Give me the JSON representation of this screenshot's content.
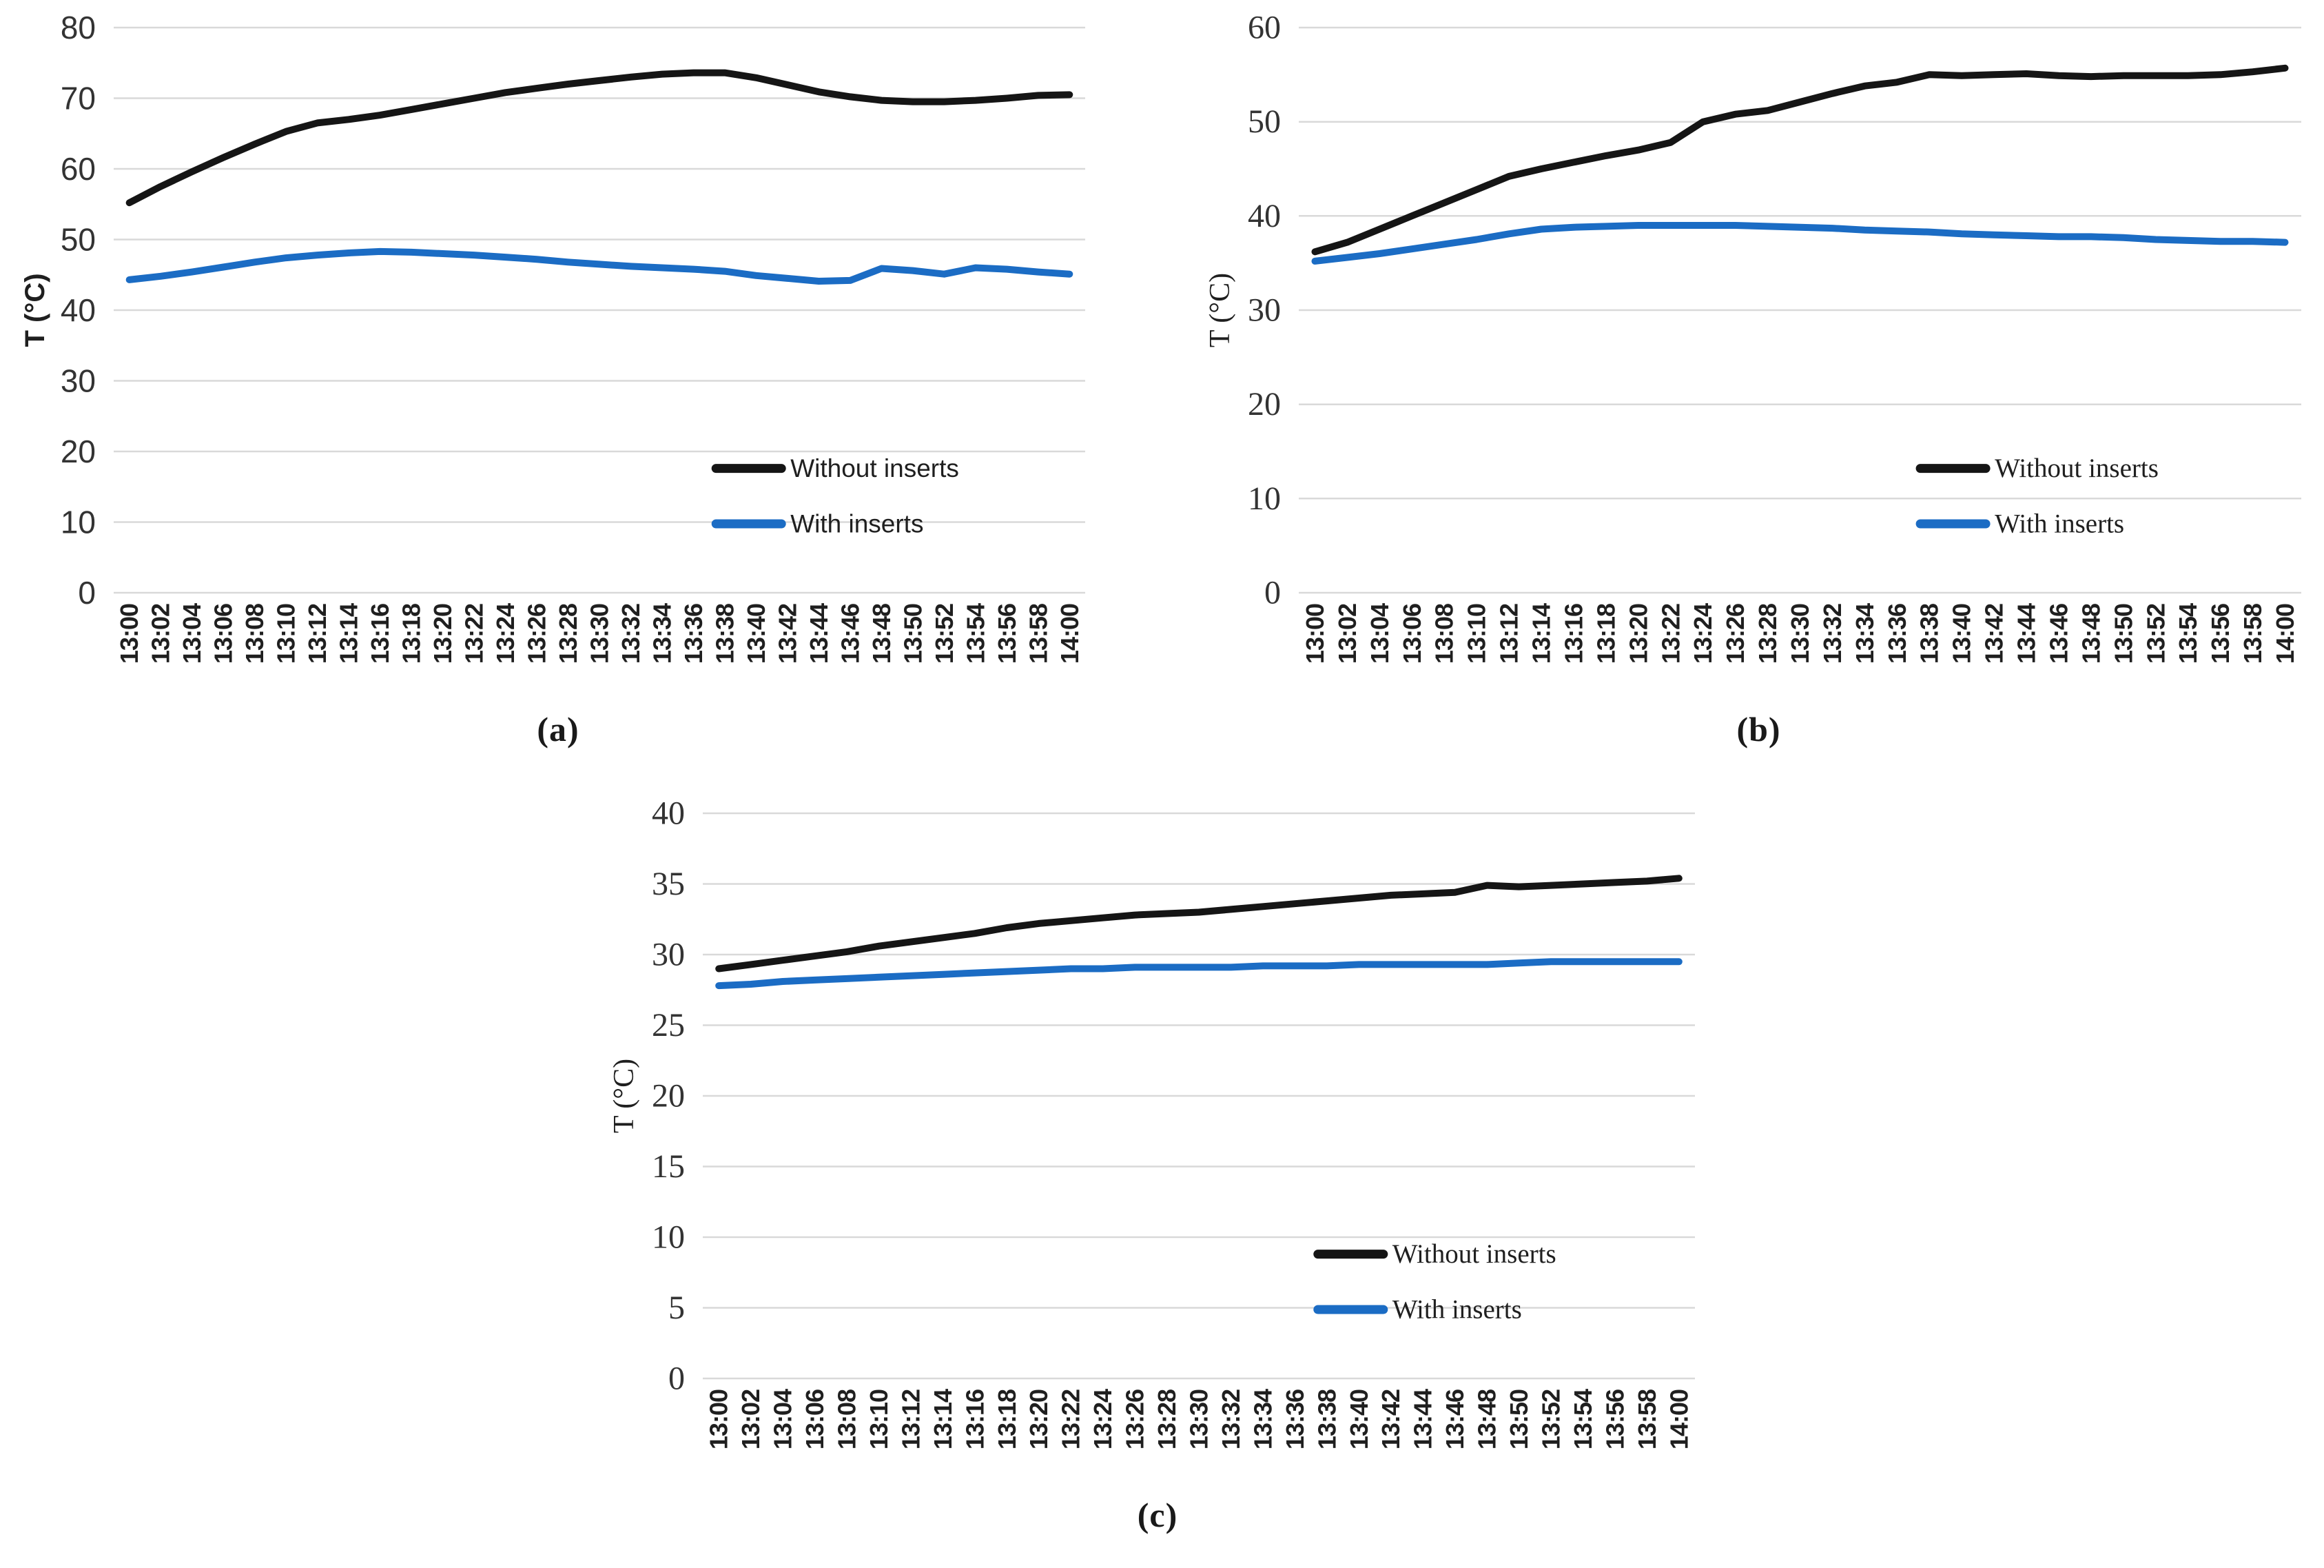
{
  "style": {
    "background": "#ffffff",
    "grid_color": "#d9d9d9",
    "black_series_color": "#151515",
    "blue_series_color": "#1b6cc4",
    "tick_text_color": "#1f1f1f"
  },
  "x_labels": [
    "13:00",
    "13:02",
    "13:04",
    "13:06",
    "13:08",
    "13:10",
    "13:12",
    "13:14",
    "13:16",
    "13:18",
    "13:20",
    "13:22",
    "13:24",
    "13:26",
    "13:28",
    "13:30",
    "13:32",
    "13:34",
    "13:36",
    "13:38",
    "13:40",
    "13:42",
    "13:44",
    "13:46",
    "13:48",
    "13:50",
    "13:52",
    "13:54",
    "13:56",
    "13:58",
    "14:00"
  ],
  "chart_data": [
    {
      "id": "a",
      "type": "line",
      "caption": "(a)",
      "ylabel": "T (°C)",
      "xlabel": "",
      "ylim": [
        0,
        80
      ],
      "ytick_step": 10,
      "grid": true,
      "legend_position": "inside-lower-right",
      "series": [
        {
          "name": "Without inserts",
          "color": "#151515",
          "values": [
            55.2,
            57.5,
            59.6,
            61.6,
            63.5,
            65.3,
            66.5,
            67.0,
            67.6,
            68.4,
            69.2,
            70.0,
            70.8,
            71.4,
            72.0,
            72.5,
            73.0,
            73.4,
            73.6,
            73.6,
            72.9,
            71.9,
            70.9,
            70.2,
            69.7,
            69.5,
            69.5,
            69.7,
            70.0,
            70.4,
            70.5
          ]
        },
        {
          "name": "With inserts",
          "color": "#1b6cc4",
          "values": [
            44.3,
            44.8,
            45.4,
            46.1,
            46.8,
            47.4,
            47.8,
            48.1,
            48.3,
            48.2,
            48.0,
            47.8,
            47.5,
            47.2,
            46.8,
            46.5,
            46.2,
            46.0,
            45.8,
            45.5,
            44.9,
            44.5,
            44.1,
            44.2,
            45.9,
            45.6,
            45.1,
            46.0,
            45.8,
            45.4,
            45.1
          ]
        }
      ]
    },
    {
      "id": "b",
      "type": "line",
      "caption": "(b)",
      "ylabel": "T (°C)",
      "xlabel": "",
      "ylim": [
        0,
        60
      ],
      "ytick_step": 10,
      "grid": true,
      "legend_position": "inside-lower-right",
      "series": [
        {
          "name": "Without inserts",
          "color": "#151515",
          "values": [
            36.2,
            37.2,
            38.6,
            40.0,
            41.4,
            42.8,
            44.2,
            45.0,
            45.7,
            46.4,
            47.0,
            47.8,
            50.0,
            50.8,
            51.2,
            52.1,
            53.0,
            53.8,
            54.2,
            55.0,
            54.9,
            55.0,
            55.1,
            54.9,
            54.8,
            54.9,
            54.9,
            54.9,
            55.0,
            55.3,
            55.7
          ]
        },
        {
          "name": "With inserts",
          "color": "#1b6cc4",
          "values": [
            35.2,
            35.6,
            36.0,
            36.5,
            37.0,
            37.5,
            38.1,
            38.6,
            38.8,
            38.9,
            39.0,
            39.0,
            39.0,
            39.0,
            38.9,
            38.8,
            38.7,
            38.5,
            38.4,
            38.3,
            38.1,
            38.0,
            37.9,
            37.8,
            37.8,
            37.7,
            37.5,
            37.4,
            37.3,
            37.3,
            37.2
          ]
        }
      ]
    },
    {
      "id": "c",
      "type": "line",
      "caption": "(c)",
      "ylabel": "T (°C)",
      "xlabel": "",
      "ylim": [
        0,
        40
      ],
      "ytick_step": 5,
      "grid": true,
      "legend_position": "inside-lower-right",
      "series": [
        {
          "name": "Without inserts",
          "color": "#151515",
          "values": [
            29.0,
            29.3,
            29.6,
            29.9,
            30.2,
            30.6,
            30.9,
            31.2,
            31.5,
            31.9,
            32.2,
            32.4,
            32.6,
            32.8,
            32.9,
            33.0,
            33.2,
            33.4,
            33.6,
            33.8,
            34.0,
            34.2,
            34.3,
            34.4,
            34.9,
            34.8,
            34.9,
            35.0,
            35.1,
            35.2,
            35.4
          ]
        },
        {
          "name": "With inserts",
          "color": "#1b6cc4",
          "values": [
            27.8,
            27.9,
            28.1,
            28.2,
            28.3,
            28.4,
            28.5,
            28.6,
            28.7,
            28.8,
            28.9,
            29.0,
            29.0,
            29.1,
            29.1,
            29.1,
            29.1,
            29.2,
            29.2,
            29.2,
            29.3,
            29.3,
            29.3,
            29.3,
            29.3,
            29.4,
            29.5,
            29.5,
            29.5,
            29.5,
            29.5
          ]
        }
      ]
    }
  ]
}
